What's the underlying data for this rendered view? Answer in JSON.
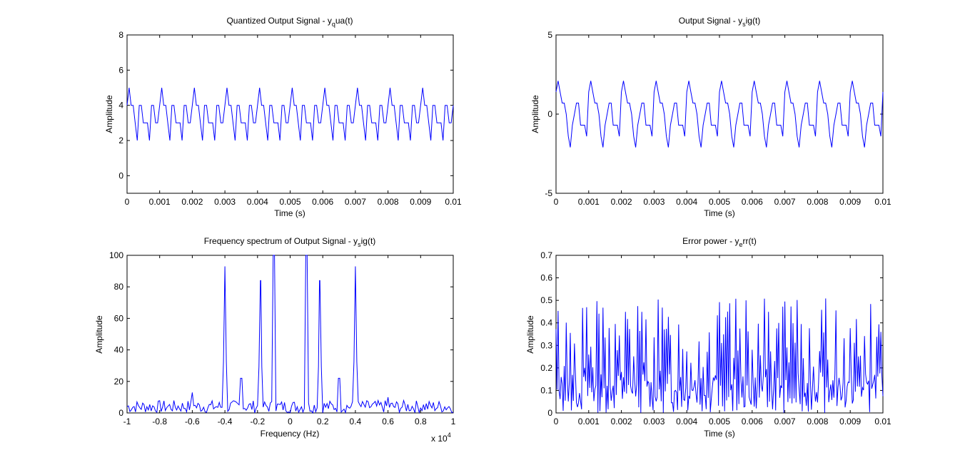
{
  "chart_data": [
    {
      "type": "line",
      "title": "Quantized Output Signal - y",
      "title_sub": "q",
      "title_rest": "ua(t)",
      "xlabel": "Time (s)",
      "ylabel": "Amplitude",
      "xlim": [
        0,
        0.01
      ],
      "ylim": [
        -1,
        8
      ],
      "xticks": [
        0,
        0.001,
        0.002,
        0.003,
        0.004,
        0.005,
        0.006,
        0.007,
        0.008,
        0.009,
        0.01
      ],
      "xtick_labels": [
        "0",
        "0.001",
        "0.002",
        "0.003",
        "0.004",
        "0.005",
        "0.006",
        "0.007",
        "0.008",
        "0.009",
        "0.01"
      ],
      "yticks": [
        0,
        2,
        4,
        6,
        8
      ],
      "ytick_labels": [
        "0",
        "2",
        "4",
        "6",
        "8"
      ],
      "line_color": "#0000ff",
      "period": 0.001,
      "step": 6.25e-05,
      "pattern": [
        4,
        5,
        4,
        4,
        3,
        2,
        4,
        4,
        3,
        3,
        3,
        2,
        4,
        4,
        3,
        3
      ],
      "series": [
        {
          "x": [
            0,
            0.01
          ],
          "values": [
            4,
            4
          ]
        }
      ]
    },
    {
      "type": "line",
      "title": "Output Signal - y",
      "title_sub": "s",
      "title_rest": "ig(t)",
      "xlabel": "Time (s)",
      "ylabel": "Amplitude",
      "xlim": [
        0,
        0.01
      ],
      "ylim": [
        -5,
        5
      ],
      "xticks": [
        0,
        0.001,
        0.002,
        0.003,
        0.004,
        0.005,
        0.006,
        0.007,
        0.008,
        0.009,
        0.01
      ],
      "xtick_labels": [
        "0",
        "0.001",
        "0.002",
        "0.003",
        "0.004",
        "0.005",
        "0.006",
        "0.007",
        "0.008",
        "0.009",
        "0.01"
      ],
      "yticks": [
        -5,
        0,
        5
      ],
      "ytick_labels": [
        "-5",
        "0",
        "5"
      ],
      "line_color": "#0000ff",
      "period": 0.001,
      "step": 6.25e-05,
      "pattern": [
        1.4,
        2.1,
        1.4,
        0.7,
        0.7,
        0,
        -1.4,
        -2.1,
        -0.7,
        0,
        0.7,
        0.7,
        -0.7,
        -0.7,
        -0.7,
        -1.4
      ],
      "series": [
        {
          "x": [
            0,
            0.01
          ],
          "values": [
            0.7,
            0.7
          ]
        }
      ]
    },
    {
      "type": "line",
      "title": "Frequency spectrum of Output Signal - y",
      "title_sub": "s",
      "title_rest": "ig(t)",
      "xlabel": "Frequency (Hz)",
      "ylabel": "Amplitude",
      "xlim": [
        -1,
        1
      ],
      "ylim": [
        0,
        100
      ],
      "x_multiplier": "x 10",
      "x_multiplier_exp": "4",
      "xticks": [
        -1,
        -0.8,
        -0.6,
        -0.4,
        -0.2,
        0,
        0.2,
        0.4,
        0.6,
        0.8,
        1
      ],
      "xtick_labels": [
        "-1",
        "-0.8",
        "-0.6",
        "-0.4",
        "-0.2",
        "0",
        "0.2",
        "0.4",
        "0.6",
        "0.8",
        "1"
      ],
      "yticks": [
        0,
        20,
        40,
        60,
        80,
        100
      ],
      "ytick_labels": [
        "0",
        "20",
        "40",
        "60",
        "80",
        "100"
      ],
      "line_color": "#0000ff",
      "noise_level": 4,
      "peaks": [
        {
          "x": -0.4,
          "value": 93
        },
        {
          "x": -0.3,
          "value": 22
        },
        {
          "x": -0.18,
          "value": 84
        },
        {
          "x": -0.1,
          "value": 100
        },
        {
          "x": 0.1,
          "value": 100
        },
        {
          "x": 0.18,
          "value": 84
        },
        {
          "x": 0.3,
          "value": 22
        },
        {
          "x": 0.4,
          "value": 93
        },
        {
          "x": -0.6,
          "value": 13
        },
        {
          "x": 0.6,
          "value": 10
        }
      ]
    },
    {
      "type": "line",
      "title": "Error power - y",
      "title_sub": "e",
      "title_rest": "rr(t)",
      "xlabel": "Time (s)",
      "ylabel": "Amplitude",
      "xlim": [
        0,
        0.01
      ],
      "ylim": [
        0,
        0.7
      ],
      "xticks": [
        0,
        0.001,
        0.002,
        0.003,
        0.004,
        0.005,
        0.006,
        0.007,
        0.008,
        0.009,
        0.01
      ],
      "xtick_labels": [
        "0",
        "0.001",
        "0.002",
        "0.003",
        "0.004",
        "0.005",
        "0.006",
        "0.007",
        "0.008",
        "0.009",
        "0.01"
      ],
      "yticks": [
        0,
        0.1,
        0.2,
        0.3,
        0.4,
        0.5,
        0.6,
        0.7
      ],
      "ytick_labels": [
        "0",
        "0.1",
        "0.2",
        "0.3",
        "0.4",
        "0.5",
        "0.6",
        "0.7"
      ],
      "line_color": "#0000ff",
      "max_value": 0.51,
      "sample_count": 320
    }
  ]
}
